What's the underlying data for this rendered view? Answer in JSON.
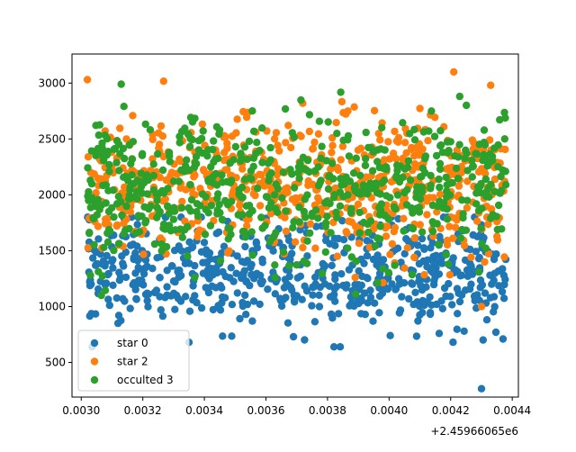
{
  "chart_data": {
    "type": "scatter",
    "title": "",
    "xlabel": "",
    "ylabel": "",
    "x_offset_label": "+2.45966065e6",
    "xlim": [
      0.00297,
      0.00442
    ],
    "ylim": [
      190,
      3260
    ],
    "x_ticks": [
      0.003,
      0.0032,
      0.0034,
      0.0036,
      0.0038,
      0.004,
      0.0042,
      0.0044
    ],
    "x_tick_labels": [
      "0.0030",
      "0.0032",
      "0.0034",
      "0.0036",
      "0.0038",
      "0.0040",
      "0.0042",
      "0.0044"
    ],
    "y_ticks": [
      500,
      1000,
      1500,
      2000,
      2500,
      3000
    ],
    "y_tick_labels": [
      "500",
      "1000",
      "1500",
      "2000",
      "2500",
      "3000"
    ],
    "legend_position": "lower-left",
    "grid": false,
    "series": [
      {
        "name": "star 0",
        "color": "#1f77b4",
        "count": 620,
        "x_range": [
          0.00302,
          0.00438
        ],
        "y_center": 1290,
        "y_spread": 230,
        "y_min": 640,
        "y_max": 1800,
        "outliers": [
          [
            0.00335,
            680
          ],
          [
            0.0043,
            265
          ],
          [
            0.00437,
            710
          ],
          [
            0.00417,
            1050
          ]
        ]
      },
      {
        "name": "star 2",
        "color": "#ff7f0e",
        "count": 620,
        "x_range": [
          0.00302,
          0.00438
        ],
        "y_center": 2070,
        "y_spread": 300,
        "y_min": 1000,
        "y_max": 3050,
        "outliers": [
          [
            0.00302,
            3030
          ],
          [
            0.00421,
            3100
          ],
          [
            0.00433,
            2980
          ],
          [
            0.0043,
            1000
          ],
          [
            0.00401,
            1560
          ],
          [
            0.00389,
            1260
          ]
        ]
      },
      {
        "name": "occulted 3",
        "color": "#2ca02c",
        "count": 620,
        "x_range": [
          0.00302,
          0.00438
        ],
        "y_center": 2050,
        "y_spread": 320,
        "y_min": 1100,
        "y_max": 3000,
        "outliers": [
          [
            0.00313,
            2990
          ],
          [
            0.00303,
            1280
          ],
          [
            0.00363,
            1260
          ],
          [
            0.00433,
            1790
          ]
        ]
      }
    ]
  }
}
